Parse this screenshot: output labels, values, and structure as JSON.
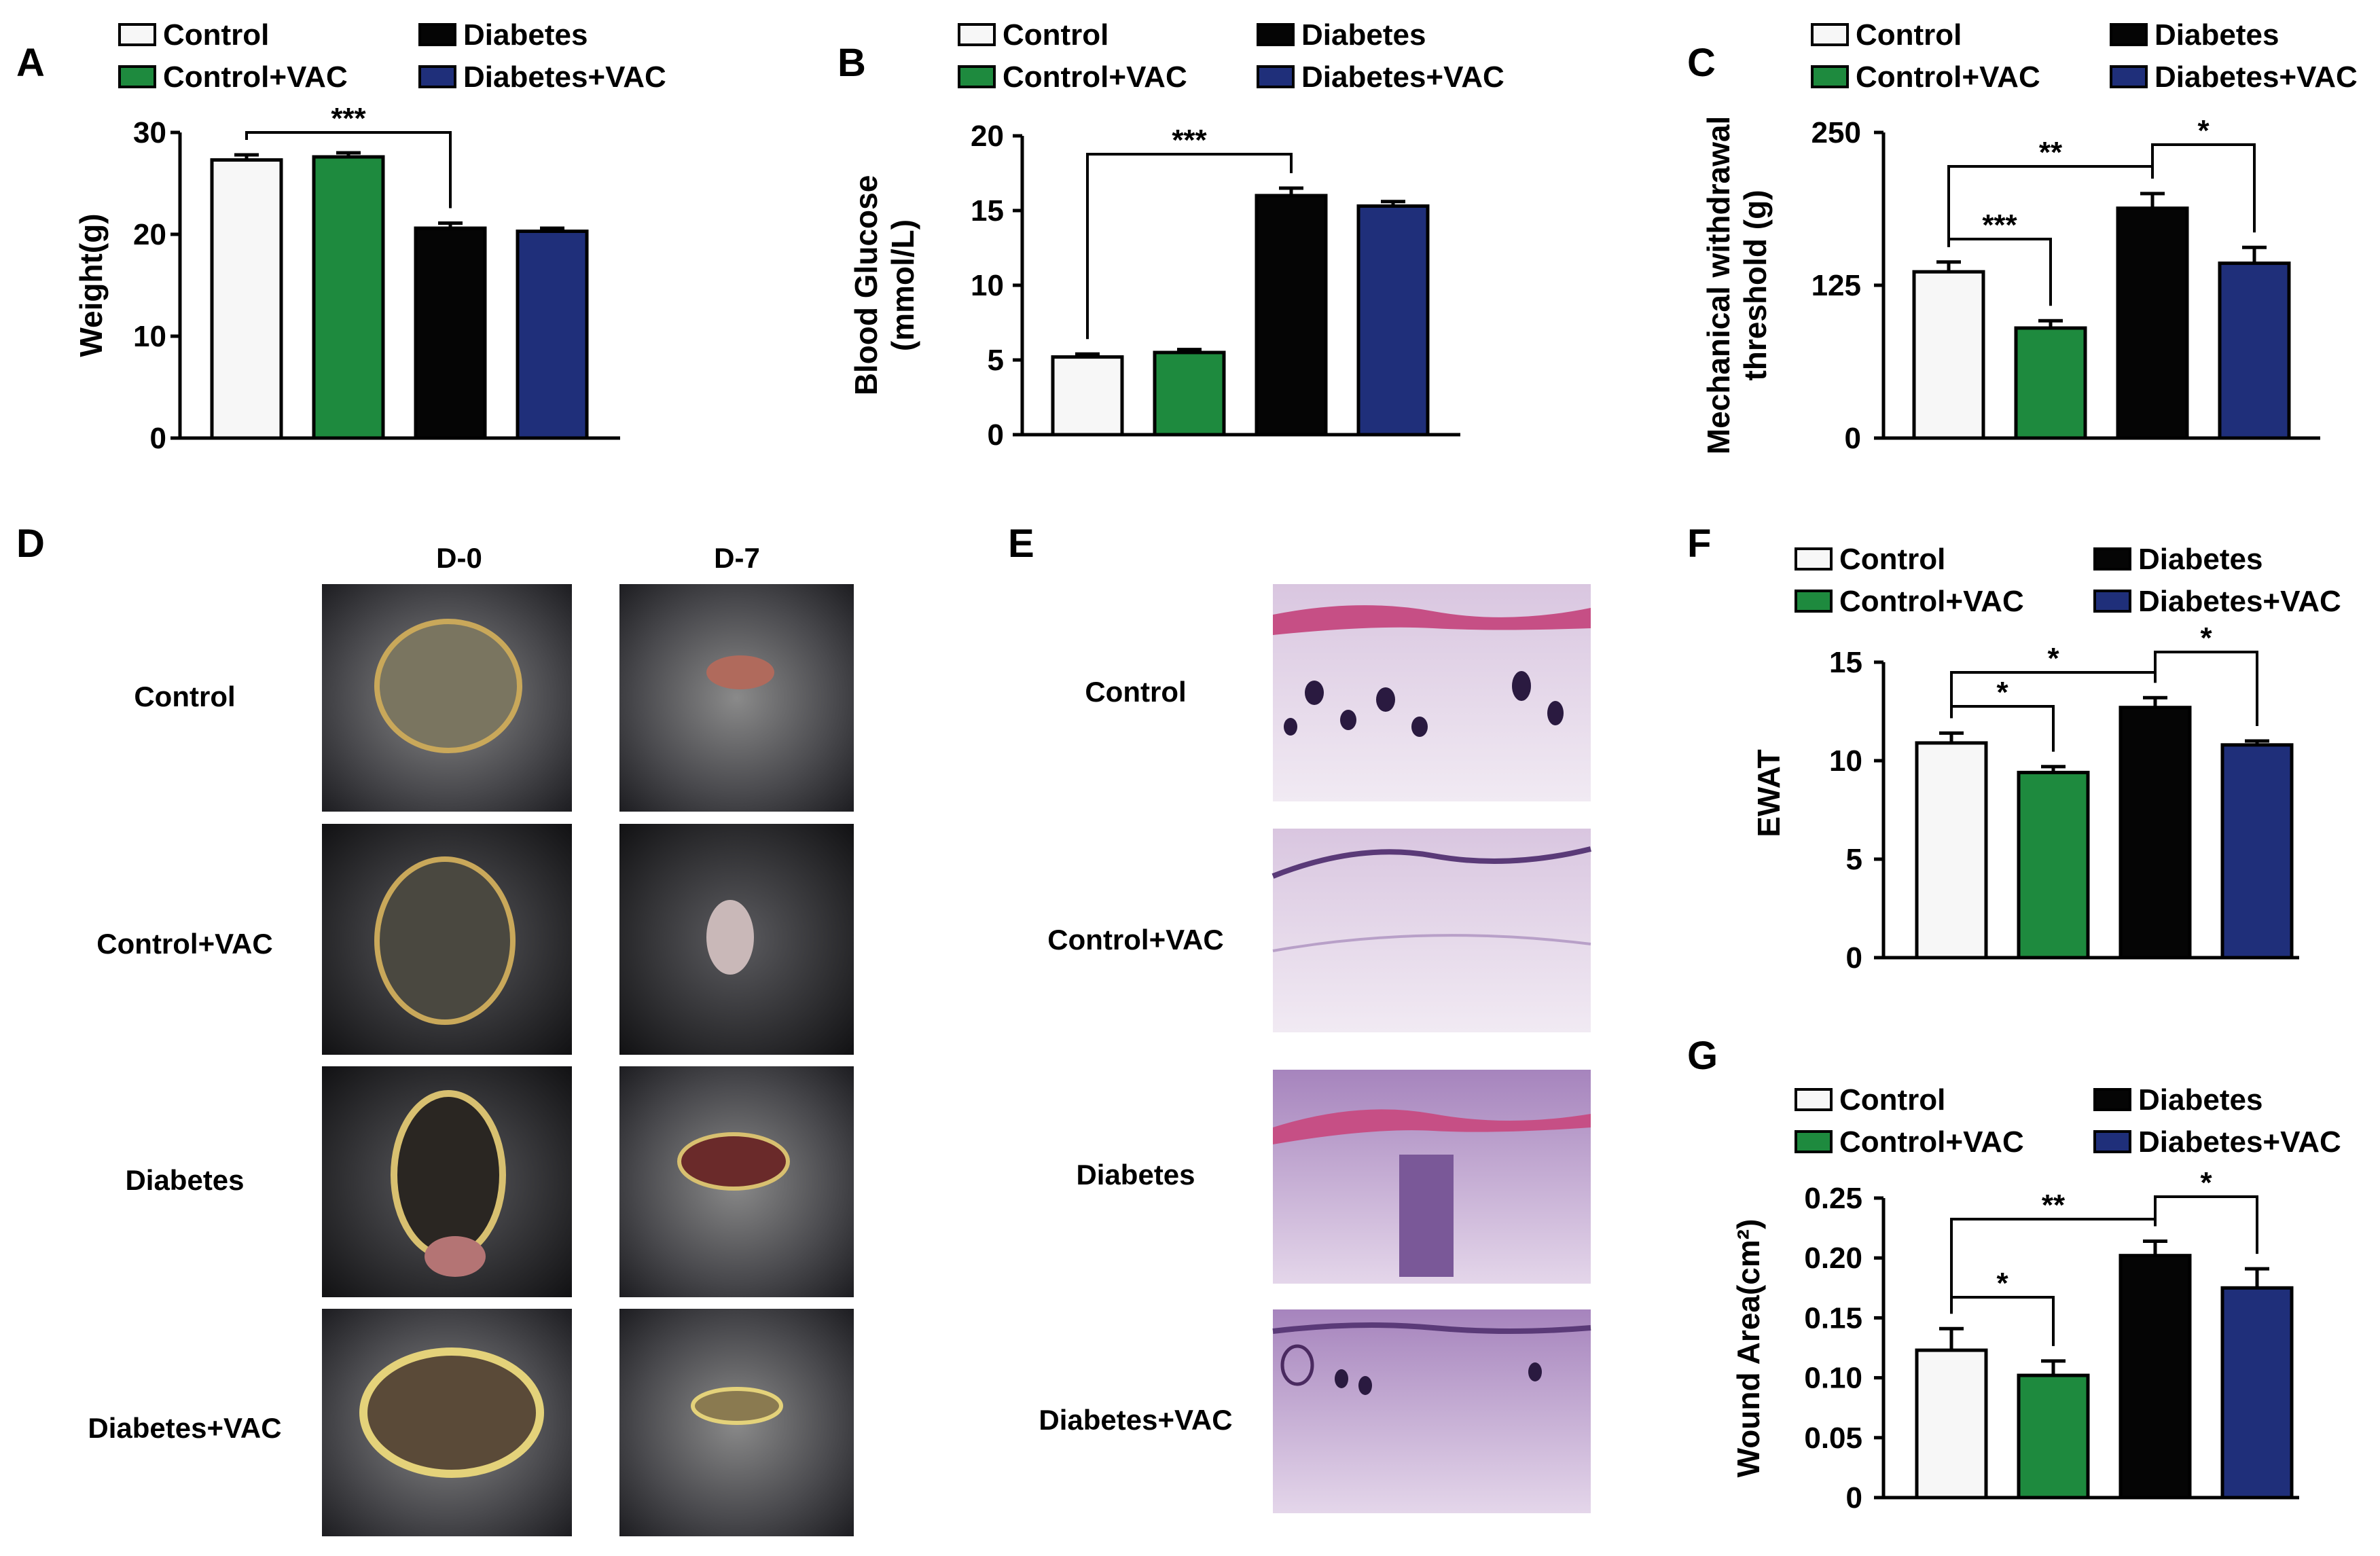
{
  "groups": [
    "Control",
    "Control+VAC",
    "Diabetes",
    "Diabetes+VAC"
  ],
  "colors": {
    "Control": "#f7f7f7",
    "Control+VAC": "#1e8a3e",
    "Diabetes": "#050505",
    "Diabetes+VAC": "#1f2f7a"
  },
  "chart_data": [
    {
      "panel": "A",
      "type": "bar",
      "categories": [
        "Control",
        "Control+VAC",
        "Diabetes",
        "Diabetes+VAC"
      ],
      "values": [
        27.3,
        27.6,
        20.6,
        20.3
      ],
      "errors": [
        0.5,
        0.4,
        0.5,
        0.3
      ],
      "ylabel": "Weight(g)",
      "ylim": [
        0,
        30
      ],
      "yticks": [
        "0",
        "10",
        "20",
        "30"
      ],
      "ytick_values": [
        0,
        10,
        20,
        30
      ],
      "legend": [
        "Control",
        "Diabetes",
        "Control+VAC",
        "Diabetes+VAC"
      ],
      "significance": [
        {
          "from": 0,
          "to": 2,
          "label": "***"
        }
      ]
    },
    {
      "panel": "B",
      "type": "bar",
      "categories": [
        "Control",
        "Control+VAC",
        "Diabetes",
        "Diabetes+VAC"
      ],
      "values": [
        5.2,
        5.5,
        16.0,
        15.3
      ],
      "errors": [
        0.2,
        0.2,
        0.5,
        0.3
      ],
      "ylabel": "Blood Glucose\n(mmol/L)",
      "ylim": [
        0,
        20
      ],
      "yticks": [
        "0",
        "5",
        "10",
        "15",
        "20"
      ],
      "ytick_values": [
        0,
        5,
        10,
        15,
        20
      ],
      "legend": [
        "Control",
        "Diabetes",
        "Control+VAC",
        "Diabetes+VAC"
      ],
      "significance": [
        {
          "from": 0,
          "to": 2,
          "label": "***"
        }
      ]
    },
    {
      "panel": "C",
      "type": "bar",
      "categories": [
        "Control",
        "Control+VAC",
        "Diabetes",
        "Diabetes+VAC"
      ],
      "values": [
        136,
        90,
        188,
        143
      ],
      "errors": [
        8,
        6,
        12,
        13
      ],
      "ylabel": "Mechanical withdrawal\nthreshold (g)",
      "ylim": [
        0,
        250
      ],
      "yticks": [
        "0",
        "125",
        "250"
      ],
      "ytick_values": [
        0,
        125,
        250
      ],
      "legend": [
        "Control",
        "Diabetes",
        "Control+VAC",
        "Diabetes+VAC"
      ],
      "significance": [
        {
          "from": 0,
          "to": 2,
          "label": "**"
        },
        {
          "from": 0,
          "to": 1,
          "label": "***"
        },
        {
          "from": 2,
          "to": 3,
          "label": "*"
        }
      ]
    },
    {
      "panel": "F",
      "type": "bar",
      "categories": [
        "Control",
        "Control+VAC",
        "Diabetes",
        "Diabetes+VAC"
      ],
      "values": [
        10.9,
        9.4,
        12.7,
        10.8
      ],
      "errors": [
        0.5,
        0.3,
        0.5,
        0.2
      ],
      "ylabel": "EWAT",
      "ylim": [
        0,
        15
      ],
      "yticks": [
        "0",
        "5",
        "10",
        "15"
      ],
      "ytick_values": [
        0,
        5,
        10,
        15
      ],
      "legend": [
        "Control",
        "Diabetes",
        "Control+VAC",
        "Diabetes+VAC"
      ],
      "significance": [
        {
          "from": 0,
          "to": 2,
          "label": "*"
        },
        {
          "from": 0,
          "to": 1,
          "label": "*"
        },
        {
          "from": 2,
          "to": 3,
          "label": "*"
        }
      ]
    },
    {
      "panel": "G",
      "type": "bar",
      "categories": [
        "Control",
        "Control+VAC",
        "Diabetes",
        "Diabetes+VAC"
      ],
      "values": [
        0.123,
        0.102,
        0.202,
        0.175
      ],
      "errors": [
        0.018,
        0.012,
        0.012,
        0.016
      ],
      "ylabel": "Wound Area(cm²)",
      "ylim": [
        0,
        0.25
      ],
      "yticks": [
        "0",
        "0.05",
        "0.10",
        "0.15",
        "0.20",
        "0.25"
      ],
      "ytick_values": [
        0,
        0.05,
        0.1,
        0.15,
        0.2,
        0.25
      ],
      "legend": [
        "Control",
        "Diabetes",
        "Control+VAC",
        "Diabetes+VAC"
      ],
      "significance": [
        {
          "from": 0,
          "to": 2,
          "label": "**"
        },
        {
          "from": 0,
          "to": 1,
          "label": "*"
        },
        {
          "from": 2,
          "to": 3,
          "label": "*"
        }
      ]
    }
  ],
  "panel_d": {
    "letter": "D",
    "columns": [
      "D-0",
      "D-7"
    ],
    "rows": [
      "Control",
      "Control+VAC",
      "Diabetes",
      "Diabetes+VAC"
    ]
  },
  "panel_e": {
    "letter": "E",
    "rows": [
      "Control",
      "Control+VAC",
      "Diabetes",
      "Diabetes+VAC"
    ]
  }
}
